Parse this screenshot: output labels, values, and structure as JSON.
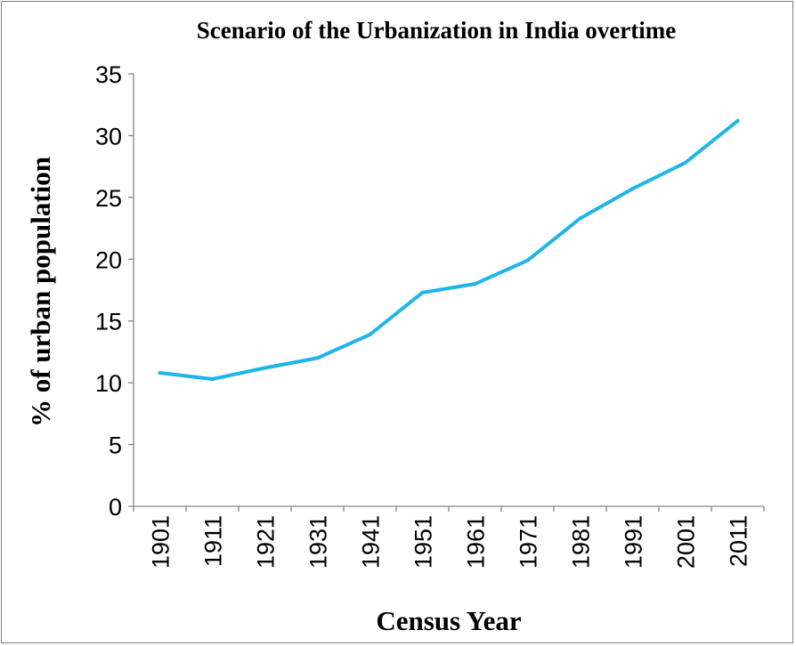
{
  "chart_data": {
    "type": "line",
    "title": "Scenario of the Urbanization in India overtime",
    "xlabel": "Census Year",
    "ylabel": "% of urban population",
    "categories": [
      "1901",
      "1911",
      "1921",
      "1931",
      "1941",
      "1951",
      "1961",
      "1971",
      "1981",
      "1991",
      "2001",
      "2011"
    ],
    "series": [
      {
        "name": "% of urban population",
        "color": "#1fb4ea",
        "values": [
          10.8,
          10.3,
          11.2,
          12.0,
          13.9,
          17.3,
          18.0,
          19.9,
          23.3,
          25.7,
          27.8,
          31.2
        ]
      }
    ],
    "ylim": [
      0,
      35
    ],
    "yticks": [
      "0",
      "5",
      "10",
      "15",
      "20",
      "25",
      "30",
      "35"
    ],
    "grid": false,
    "legend": "none"
  }
}
